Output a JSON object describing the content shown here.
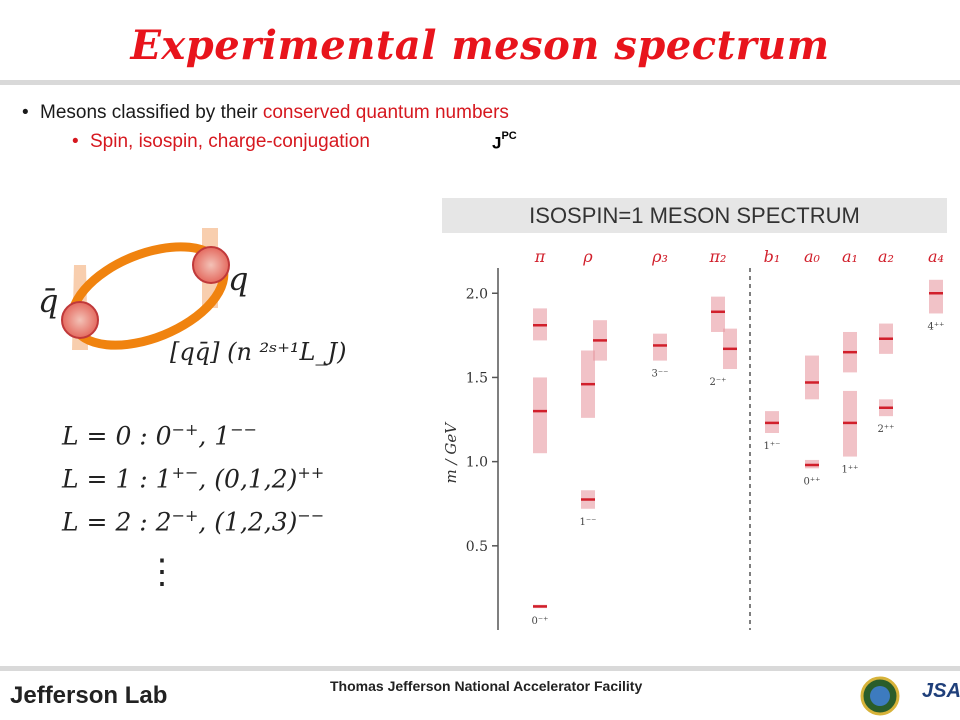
{
  "slide": {
    "title": "Experimental meson spectrum",
    "bullet1": {
      "prefix": "Mesons classified by their ",
      "highlight": "conserved quantum numbers"
    },
    "bullet2": "Spin, isospin, charge-conjugation",
    "jpc_base": "J",
    "jpc_sup": "PC",
    "banner": "ISOSPIN=1 MESON SPECTRUM",
    "diagram": {
      "q_label": "q",
      "qbar_label": "q̄",
      "notation": "[qq̄] (n ²ˢ⁺¹L_J)"
    },
    "equations": [
      {
        "lhs": "L = 0 : ",
        "rhs": "0",
        "sup": "−+",
        "rest": ", 1",
        "sup2": "−−"
      },
      {
        "lhs": "L = 1 : ",
        "rhs": "1",
        "sup": "+−",
        "rest": ", (0,1,2)",
        "sup2": "++"
      },
      {
        "lhs": "L = 2 : ",
        "rhs": "2",
        "sup": "−+",
        "rest": ", (1,2,3)",
        "sup2": "−−"
      }
    ],
    "vdots": "⋮"
  },
  "footer": {
    "logo": "Jefferson Lab",
    "facility": "Thomas Jefferson National Accelerator Facility",
    "jsa": "JSA"
  },
  "colors": {
    "title": "#e8141c",
    "accent": "#d6181f",
    "band": "#e79aa2",
    "line": "#d11f2b"
  },
  "chart_data": {
    "type": "scatter",
    "ylabel": "m / GeV",
    "yticks": [
      0.5,
      1.0,
      1.5,
      2.0
    ],
    "ylim": [
      0.0,
      2.15
    ],
    "columns": [
      {
        "name": "π",
        "jpc": "0⁻⁺",
        "states": [
          {
            "mass": 0.14,
            "range": [
              0.13,
              0.15
            ]
          },
          {
            "mass": 1.3,
            "range": [
              1.05,
              1.5
            ]
          },
          {
            "mass": 1.81,
            "range": [
              1.72,
              1.91
            ]
          }
        ]
      },
      {
        "name": "ρ",
        "jpc": "1⁻⁻",
        "states": [
          {
            "mass": 0.775,
            "range": [
              0.72,
              0.83
            ]
          },
          {
            "mass": 1.46,
            "range": [
              1.26,
              1.66
            ]
          },
          {
            "mass": 1.72,
            "range": [
              1.6,
              1.84
            ]
          }
        ]
      },
      {
        "name": "ρ₃",
        "jpc": "3⁻⁻",
        "states": [
          {
            "mass": 1.69,
            "range": [
              1.6,
              1.76
            ]
          }
        ]
      },
      {
        "name": "π₂",
        "jpc": "2⁻⁺",
        "states": [
          {
            "mass": 1.67,
            "range": [
              1.55,
              1.79
            ]
          },
          {
            "mass": 1.89,
            "range": [
              1.77,
              1.98
            ]
          }
        ]
      },
      {
        "name": "b₁",
        "jpc": "1⁺⁻",
        "states": [
          {
            "mass": 1.23,
            "range": [
              1.17,
              1.3
            ]
          }
        ]
      },
      {
        "name": "a₀",
        "jpc": "0⁺⁺",
        "states": [
          {
            "mass": 0.98,
            "range": [
              0.96,
              1.01
            ]
          },
          {
            "mass": 1.47,
            "range": [
              1.37,
              1.63
            ]
          }
        ]
      },
      {
        "name": "a₁",
        "jpc": "1⁺⁺",
        "states": [
          {
            "mass": 1.23,
            "range": [
              1.03,
              1.42
            ]
          },
          {
            "mass": 1.65,
            "range": [
              1.53,
              1.77
            ]
          }
        ]
      },
      {
        "name": "a₂",
        "jpc": "2⁺⁺",
        "states": [
          {
            "mass": 1.32,
            "range": [
              1.27,
              1.37
            ]
          },
          {
            "mass": 1.73,
            "range": [
              1.64,
              1.82
            ]
          }
        ]
      },
      {
        "name": "a₄",
        "jpc": "4⁺⁺",
        "states": [
          {
            "mass": 2.0,
            "range": [
              1.88,
              2.08
            ]
          }
        ]
      }
    ]
  }
}
